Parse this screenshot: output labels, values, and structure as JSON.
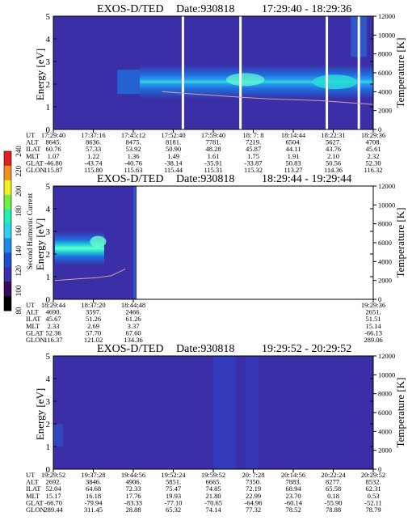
{
  "colors": {
    "background_low": "#3a2fa6",
    "band": "#2ea2f0",
    "band_core": "#27e0d5",
    "band_peak": "#66ffcc",
    "temperature_line": "#d9a0a0",
    "gap": "#ffffff"
  },
  "colorbar": {
    "label": "Second Harmonic Current",
    "ticks": [
      "80",
      "100",
      "120",
      "140",
      "160",
      "180",
      "200",
      "220",
      "240"
    ],
    "colors": [
      "#000000",
      "#3a0a5a",
      "#3a2fa6",
      "#1c4fd0",
      "#1f8be8",
      "#2ed0f0",
      "#20f0b0",
      "#70f040",
      "#f0f020",
      "#f09020",
      "#e02020"
    ]
  },
  "chart_data": [
    {
      "type": "heatmap",
      "title": "EXOS-D/TED",
      "date_text": "Date:930818",
      "time_range": "17:29:40 - 18:29:36",
      "ylabel": "Energy [eV]",
      "y2label": "Temperature [K]",
      "ylim": [
        0,
        5
      ],
      "y2lim": [
        0,
        12000
      ],
      "y_ticks": [
        "0",
        "1",
        "2",
        "3",
        "4",
        "5"
      ],
      "y2_ticks": [
        "0",
        "2000",
        "4000",
        "6000",
        "8000",
        "10000",
        "12000"
      ],
      "band_center_eV": 2.1,
      "band_start_fraction": 0.38,
      "gaps_fraction": [
        0.405,
        0.585,
        0.855,
        0.955
      ],
      "temperature_line_K": [
        4000,
        3800,
        3600,
        3400,
        3250,
        3150,
        3050,
        2850,
        2650
      ],
      "orbit_table": {
        "row_labels": [
          "UT",
          "ALT",
          "ILAT",
          "MLT",
          "GLAT",
          "GLON"
        ],
        "columns": [
          [
            "17:29:40",
            "8645.",
            "60.76",
            "1.07",
            "-46.80",
            "115.87"
          ],
          [
            "17:37:16",
            "8636.",
            "57.33",
            "1.22",
            "-43.74",
            "115.80"
          ],
          [
            "17:45:12",
            "8475.",
            "53.92",
            "1.36",
            "-40.76",
            "115.63"
          ],
          [
            "17:52:40",
            "8181.",
            "50.90",
            "1.49",
            "-38.14",
            "115.44"
          ],
          [
            "17:59:40",
            "7781.",
            "48.28",
            "1.61",
            "-35.91",
            "115.31"
          ],
          [
            "18: 7: 8",
            "7219.",
            "45.87",
            "1.75",
            "-33.87",
            "115.32"
          ],
          [
            "18:14:44",
            "6504.",
            "44.11",
            "1.91",
            "50.83",
            "113.27"
          ],
          [
            "18:22:31",
            "5627.",
            "43.76",
            "2.10",
            "50.56",
            "114.36"
          ],
          [
            "18:29:36",
            "4708.",
            "45.61",
            "2.32",
            "52.30",
            "116.32"
          ]
        ]
      }
    },
    {
      "type": "heatmap",
      "title": "EXOS-D/TED",
      "date_text": "Date:930818",
      "time_range": "18:29:44 - 19:29:44",
      "ylabel": "Energy [eV]",
      "y2label": "Temperature [K]",
      "ylim": [
        0,
        5
      ],
      "y2lim": [
        0,
        12000
      ],
      "y_ticks": [
        "0",
        "1",
        "2",
        "3",
        "4",
        "5"
      ],
      "y2_ticks": [
        "0",
        "2000",
        "4000",
        "6000",
        "8000",
        "10000",
        "12000"
      ],
      "band_center_eV": 2.2,
      "data_end_fraction": 0.26,
      "temperature_line_K": [
        2000,
        2100,
        2200,
        2300,
        2500,
        3200
      ],
      "orbit_table": {
        "row_labels": [
          "UT",
          "ALT",
          "ILAT",
          "MLT",
          "GLAT",
          "GLON"
        ],
        "columns": [
          [
            "18:29:44",
            "4690.",
            "45.67",
            "2.33",
            "52.36",
            "116.37"
          ],
          [
            "18:37:20",
            "3597.",
            "51.26",
            "2.69",
            "57.70",
            "121.02"
          ],
          [
            "18:44:48",
            "2466.",
            "61.26",
            "3.37",
            "67.60",
            "134.36"
          ],
          [
            "19:29:36",
            "2651.",
            "51.51",
            "15.14",
            "-66.13",
            "289.06"
          ]
        ]
      }
    },
    {
      "type": "heatmap",
      "title": "EXOS-D/TED",
      "date_text": "Date:930818",
      "time_range": "19:29:52 - 20:29:52",
      "ylabel": "Energy [eV]",
      "y2label": "Temperature [K]",
      "ylim": [
        0,
        5
      ],
      "y2lim": [
        0,
        12000
      ],
      "y_ticks": [
        "0",
        "1",
        "2",
        "3",
        "4",
        "5"
      ],
      "y2_ticks": [
        "0",
        "2000",
        "4000",
        "6000",
        "8000",
        "10000",
        "12000"
      ],
      "orbit_table": {
        "row_labels": [
          "UT",
          "ALT",
          "ILAT",
          "MLT",
          "GLAT",
          "GLON"
        ],
        "columns": [
          [
            "19:29:52",
            "2692.",
            "52.04",
            "15.17",
            "-66.70",
            "289.44"
          ],
          [
            "19:37:28",
            "3846.",
            "64.68",
            "16.18",
            "-79.94",
            "311.45"
          ],
          [
            "19:44:56",
            "4906.",
            "72.33",
            "17.76",
            "-83.33",
            "28.88"
          ],
          [
            "19:52:24",
            "5851.",
            "75.47",
            "19.93",
            "-77.10",
            "65.32"
          ],
          [
            "19:59:52",
            "6665.",
            "74.85",
            "21.80",
            "-70.65",
            "74.14"
          ],
          [
            "20: 7:28",
            "7350.",
            "72.19",
            "22.99",
            "-64.96",
            "77.32"
          ],
          [
            "20:14:56",
            "7883.",
            "68.94",
            "23.70",
            "-60.14",
            "78.52"
          ],
          [
            "20:22:24",
            "8277.",
            "65.58",
            "0.18",
            "-55.90",
            "78.88"
          ],
          [
            "20:29:52",
            "8532.",
            "62.31",
            "0.53",
            "-52.11",
            "78.79"
          ]
        ]
      }
    }
  ]
}
